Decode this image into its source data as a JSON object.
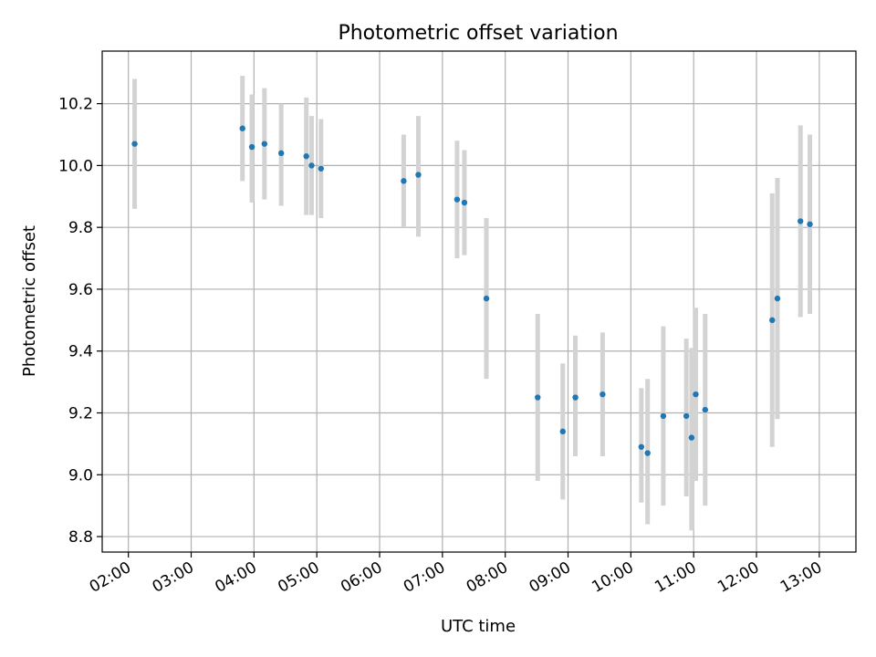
{
  "chart_data": {
    "type": "scatter",
    "title": "Photometric offset variation",
    "xlabel": "UTC time",
    "ylabel": "Photometric offset",
    "x_unit": "hour",
    "xlim": [
      "01:35",
      "13:35"
    ],
    "ylim": [
      8.75,
      10.37
    ],
    "x_ticks": [
      "02:00",
      "03:00",
      "04:00",
      "05:00",
      "06:00",
      "07:00",
      "08:00",
      "09:00",
      "10:00",
      "11:00",
      "12:00",
      "13:00"
    ],
    "y_ticks": [
      "8.8",
      "9.0",
      "9.2",
      "9.4",
      "9.6",
      "9.8",
      "10.0",
      "10.2"
    ],
    "grid": true,
    "marker_color": "#1f77b4",
    "errorbar_color": "#d3d3d3",
    "series": [
      {
        "points": [
          {
            "x": "02:06",
            "y": 10.07,
            "lo": 9.86,
            "hi": 10.28
          },
          {
            "x": "03:49",
            "y": 10.12,
            "lo": 9.95,
            "hi": 10.29
          },
          {
            "x": "03:58",
            "y": 10.06,
            "lo": 9.88,
            "hi": 10.23
          },
          {
            "x": "04:10",
            "y": 10.07,
            "lo": 9.89,
            "hi": 10.25
          },
          {
            "x": "04:26",
            "y": 10.04,
            "lo": 9.87,
            "hi": 10.2
          },
          {
            "x": "04:50",
            "y": 10.03,
            "lo": 9.84,
            "hi": 10.22
          },
          {
            "x": "04:55",
            "y": 10.0,
            "lo": 9.84,
            "hi": 10.16
          },
          {
            "x": "05:04",
            "y": 9.99,
            "lo": 9.83,
            "hi": 10.15
          },
          {
            "x": "06:23",
            "y": 9.95,
            "lo": 9.8,
            "hi": 10.1
          },
          {
            "x": "06:37",
            "y": 9.97,
            "lo": 9.77,
            "hi": 10.16
          },
          {
            "x": "07:14",
            "y": 9.89,
            "lo": 9.7,
            "hi": 10.08
          },
          {
            "x": "07:21",
            "y": 9.88,
            "lo": 9.71,
            "hi": 10.05
          },
          {
            "x": "07:42",
            "y": 9.57,
            "lo": 9.31,
            "hi": 9.83
          },
          {
            "x": "08:31",
            "y": 9.25,
            "lo": 8.98,
            "hi": 9.52
          },
          {
            "x": "08:55",
            "y": 9.14,
            "lo": 8.92,
            "hi": 9.36
          },
          {
            "x": "09:07",
            "y": 9.25,
            "lo": 9.06,
            "hi": 9.45
          },
          {
            "x": "09:33",
            "y": 9.26,
            "lo": 9.06,
            "hi": 9.46
          },
          {
            "x": "10:10",
            "y": 9.09,
            "lo": 8.91,
            "hi": 9.28
          },
          {
            "x": "10:16",
            "y": 9.07,
            "lo": 8.84,
            "hi": 9.31
          },
          {
            "x": "10:31",
            "y": 9.19,
            "lo": 8.9,
            "hi": 9.48
          },
          {
            "x": "10:53",
            "y": 9.19,
            "lo": 8.93,
            "hi": 9.44
          },
          {
            "x": "10:58",
            "y": 9.12,
            "lo": 8.82,
            "hi": 9.41
          },
          {
            "x": "11:02",
            "y": 9.26,
            "lo": 8.98,
            "hi": 9.54
          },
          {
            "x": "11:11",
            "y": 9.21,
            "lo": 8.9,
            "hi": 9.52
          },
          {
            "x": "12:15",
            "y": 9.5,
            "lo": 9.09,
            "hi": 9.91
          },
          {
            "x": "12:20",
            "y": 9.57,
            "lo": 9.18,
            "hi": 9.96
          },
          {
            "x": "12:42",
            "y": 9.82,
            "lo": 9.51,
            "hi": 10.13
          },
          {
            "x": "12:51",
            "y": 9.81,
            "lo": 9.52,
            "hi": 10.1
          }
        ]
      }
    ]
  }
}
